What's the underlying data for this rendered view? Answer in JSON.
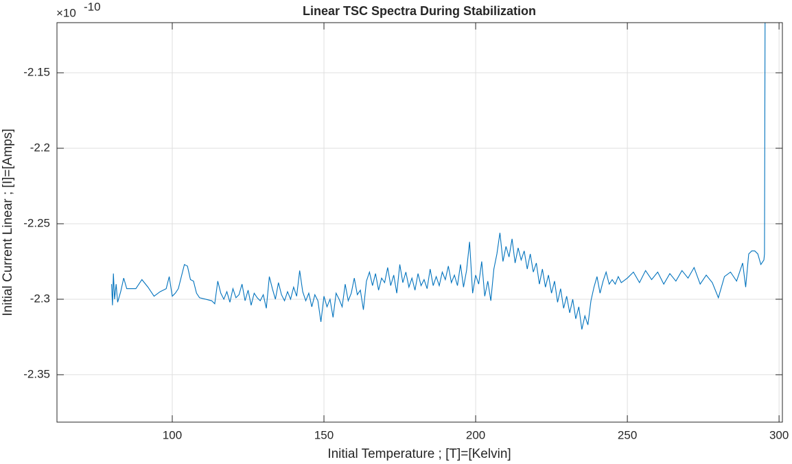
{
  "chart_data": {
    "type": "line",
    "title": "Linear TSC Spectra During Stabilization",
    "x_label": "Initial Temperature ; [T]=[Kelvin]",
    "y_label": "Initial Current Linear ; [I]=[Amps]",
    "y_multiplier": {
      "base": "×10",
      "exponent": "-10"
    },
    "xlim": [
      62,
      301.1
    ],
    "ylim": [
      -2.3814,
      -2.1168
    ],
    "xticks": [
      100,
      150,
      200,
      250,
      300
    ],
    "yticks": [
      -2.35,
      -2.3,
      -2.25,
      -2.2,
      -2.15
    ],
    "grid": true,
    "series": [
      {
        "color": "#0072bd",
        "x": [
          80,
          80.3,
          80.6,
          81,
          81.5,
          82,
          83,
          84,
          85,
          88,
          90,
          92,
          94,
          96,
          98,
          99,
          100,
          101,
          102,
          103,
          104,
          105,
          106,
          107,
          108,
          109,
          111,
          113,
          114,
          115,
          116,
          117,
          118,
          119,
          120,
          121,
          122,
          123,
          124,
          125,
          126,
          127,
          128,
          129,
          130,
          131,
          132,
          133,
          134,
          135,
          136,
          137,
          138,
          139,
          140,
          141,
          142,
          143,
          144,
          145,
          146,
          147,
          148,
          149,
          150,
          151,
          152,
          153,
          154,
          155,
          156,
          157,
          158,
          159,
          160,
          161,
          162,
          163,
          164,
          165,
          166,
          167,
          168,
          169,
          170,
          171,
          172,
          173,
          174,
          175,
          176,
          177,
          178,
          179,
          180,
          181,
          182,
          183,
          184,
          185,
          186,
          187,
          188,
          189,
          190,
          191,
          192,
          193,
          194,
          195,
          196,
          197,
          198,
          199,
          200,
          201,
          202,
          203,
          204,
          205,
          206,
          207,
          208,
          209,
          210,
          211,
          212,
          213,
          214,
          215,
          216,
          217,
          218,
          219,
          220,
          221,
          222,
          223,
          224,
          225,
          226,
          227,
          228,
          229,
          230,
          231,
          232,
          233,
          234,
          235,
          236,
          237,
          238,
          239,
          240,
          241,
          242,
          243,
          244,
          245,
          246,
          247,
          248,
          250,
          252,
          254,
          256,
          258,
          260,
          262,
          264,
          266,
          268,
          270,
          272,
          274,
          276,
          278,
          280,
          282,
          284,
          286,
          288,
          289,
          290,
          291,
          292,
          293,
          294,
          295,
          295.2,
          295.4
        ],
        "values": [
          -2.29,
          -2.304,
          -2.283,
          -2.3,
          -2.29,
          -2.302,
          -2.295,
          -2.286,
          -2.293,
          -2.293,
          -2.287,
          -2.292,
          -2.298,
          -2.295,
          -2.293,
          -2.285,
          -2.298,
          -2.296,
          -2.293,
          -2.285,
          -2.277,
          -2.278,
          -2.287,
          -2.288,
          -2.296,
          -2.299,
          -2.3,
          -2.301,
          -2.303,
          -2.288,
          -2.296,
          -2.3,
          -2.295,
          -2.302,
          -2.293,
          -2.299,
          -2.297,
          -2.29,
          -2.301,
          -2.294,
          -2.304,
          -2.296,
          -2.299,
          -2.301,
          -2.297,
          -2.306,
          -2.285,
          -2.293,
          -2.3,
          -2.289,
          -2.297,
          -2.301,
          -2.295,
          -2.3,
          -2.292,
          -2.298,
          -2.281,
          -2.295,
          -2.301,
          -2.296,
          -2.305,
          -2.297,
          -2.301,
          -2.315,
          -2.298,
          -2.305,
          -2.3,
          -2.312,
          -2.296,
          -2.3,
          -2.305,
          -2.29,
          -2.301,
          -2.296,
          -2.286,
          -2.297,
          -2.294,
          -2.307,
          -2.288,
          -2.282,
          -2.291,
          -2.283,
          -2.294,
          -2.286,
          -2.289,
          -2.279,
          -2.291,
          -2.284,
          -2.296,
          -2.277,
          -2.289,
          -2.282,
          -2.292,
          -2.286,
          -2.294,
          -2.283,
          -2.291,
          -2.287,
          -2.293,
          -2.28,
          -2.291,
          -2.285,
          -2.291,
          -2.282,
          -2.287,
          -2.278,
          -2.289,
          -2.284,
          -2.291,
          -2.277,
          -2.292,
          -2.281,
          -2.262,
          -2.296,
          -2.284,
          -2.29,
          -2.275,
          -2.298,
          -2.288,
          -2.301,
          -2.28,
          -2.27,
          -2.256,
          -2.275,
          -2.265,
          -2.272,
          -2.26,
          -2.276,
          -2.266,
          -2.274,
          -2.268,
          -2.28,
          -2.27,
          -2.282,
          -2.276,
          -2.29,
          -2.28,
          -2.292,
          -2.284,
          -2.296,
          -2.288,
          -2.302,
          -2.293,
          -2.306,
          -2.298,
          -2.309,
          -2.3,
          -2.313,
          -2.305,
          -2.32,
          -2.311,
          -2.317,
          -2.301,
          -2.292,
          -2.285,
          -2.296,
          -2.288,
          -2.282,
          -2.29,
          -2.287,
          -2.29,
          -2.285,
          -2.289,
          -2.286,
          -2.282,
          -2.289,
          -2.281,
          -2.287,
          -2.282,
          -2.29,
          -2.283,
          -2.288,
          -2.281,
          -2.286,
          -2.279,
          -2.29,
          -2.284,
          -2.289,
          -2.299,
          -2.285,
          -2.282,
          -2.288,
          -2.276,
          -2.292,
          -2.27,
          -2.268,
          -2.268,
          -2.27,
          -2.277,
          -2.274,
          -2.27,
          -2.11
        ]
      }
    ]
  }
}
